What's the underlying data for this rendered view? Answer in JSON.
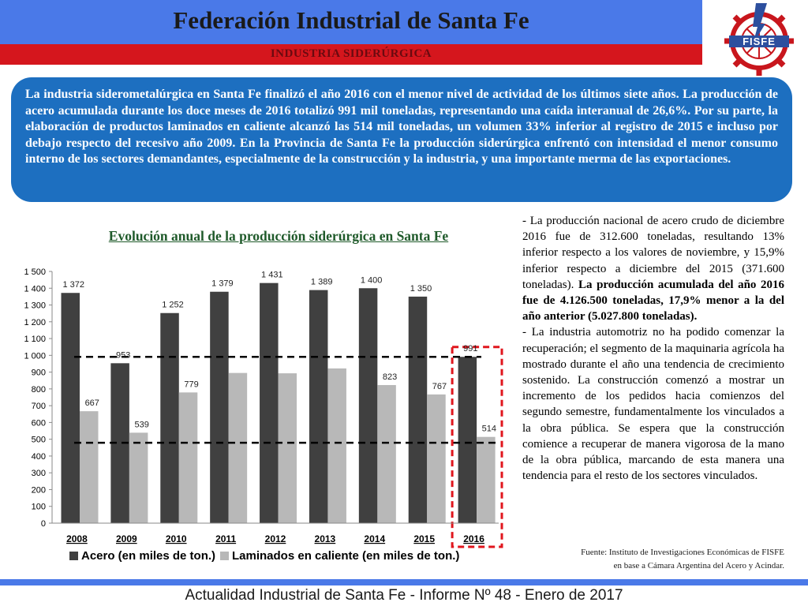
{
  "header": {
    "title": "Federación Industrial de Santa Fe",
    "subtitle": "INDUSTRIA SIDERÚRGICA"
  },
  "logo": {
    "text": "FISFE",
    "icon": "fisfe-gear-logo-icon"
  },
  "intro": "La industria siderometalúrgica en Santa Fe finalizó el año 2016 con el menor nivel de actividad de los últimos siete años. La producción de acero acumulada durante los doce meses de 2016 totalizó 991 mil toneladas, representando una caída interanual de 26,6%. Por su parte, la elaboración de productos laminados en caliente alcanzó las 514 mil toneladas, un volumen 33% inferior al registro de 2015 e incluso por debajo respecto del recesivo año 2009. En la Provincia de Santa Fe la producción siderúrgica enfrentó con intensidad el menor consumo interno de los sectores demandantes, especialmente de la construcción y la industria, y una importante merma de las exportaciones.",
  "side": {
    "p1_normal": "- La producción nacional de acero crudo de diciembre 2016 fue de 312.600 toneladas, resultando 13% inferior respecto a los valores de noviembre, y 15,9% inferior respecto a diciembre del 2015 (371.600 toneladas).",
    "p1_bold": "La producción acumulada del año 2016 fue de 4.126.500 toneladas, 17,9% menor a la del año anterior (5.027.800 toneladas).",
    "p2": "- La industria automotriz no ha podido comenzar la recuperación; el segmento de la maquinaria agrícola ha mostrado durante el año una tendencia de crecimiento sostenido. La construcción comenzó a mostrar un incremento de los pedidos hacia comienzos del segundo semestre, fundamentalmente los vinculados a la obra pública. Se espera que la construcción comience a recuperar de manera vigorosa de la mano de la obra pública, marcando de esta manera una tendencia para el resto de los sectores vinculados."
  },
  "source": {
    "line1": "Fuente: Instituto de Investigaciones Económicas de FISFE",
    "line2": "en base a  Cámara Argentina del Acero y Acindar."
  },
  "footer": "Actualidad Industrial de Santa Fe - Informe Nº 48 - Enero de 2017",
  "colors": {
    "header_blue": "#4a79e8",
    "header_red": "#d5161d",
    "intro_box": "#1d6fc0",
    "acero": "#404040",
    "laminados": "#b8b8b8",
    "highlight": "#e0161d"
  },
  "chart_data": {
    "type": "bar",
    "title": "Evolución anual de la producción siderúrgica en Santa Fe",
    "categories": [
      "2008",
      "2009",
      "2010",
      "2011",
      "2012",
      "2013",
      "2014",
      "2015",
      "2016"
    ],
    "series": [
      {
        "name": "Acero (en miles de ton.)",
        "values": [
          1372,
          953,
          1252,
          1379,
          1431,
          1389,
          1400,
          1350,
          991
        ],
        "labels": [
          "1 372",
          "953",
          "1 252",
          "1 379",
          "1 431",
          "1 389",
          "1 400",
          "1 350",
          "991"
        ]
      },
      {
        "name": "Laminados en caliente (en miles de ton.)",
        "values": [
          667,
          539,
          779,
          895,
          893,
          922,
          823,
          767,
          514
        ],
        "labels": [
          "667",
          "539",
          "779",
          "",
          "",
          "",
          "823",
          "767",
          "514"
        ]
      }
    ],
    "ylim": [
      0,
      1500
    ],
    "yticks": [
      0,
      100,
      200,
      300,
      400,
      500,
      600,
      700,
      800,
      900,
      1000,
      1100,
      1200,
      1300,
      1400,
      1500
    ],
    "ytick_labels": [
      "0",
      "100",
      "200",
      "300",
      "400",
      "500",
      "600",
      "700",
      "800",
      "900",
      "1 000",
      "1 100",
      "1 200",
      "1 300",
      "1 400",
      "1 500"
    ],
    "reference_lines": [
      991,
      479
    ],
    "highlight_category": "2016",
    "legend_position": "bottom",
    "grid": false
  }
}
